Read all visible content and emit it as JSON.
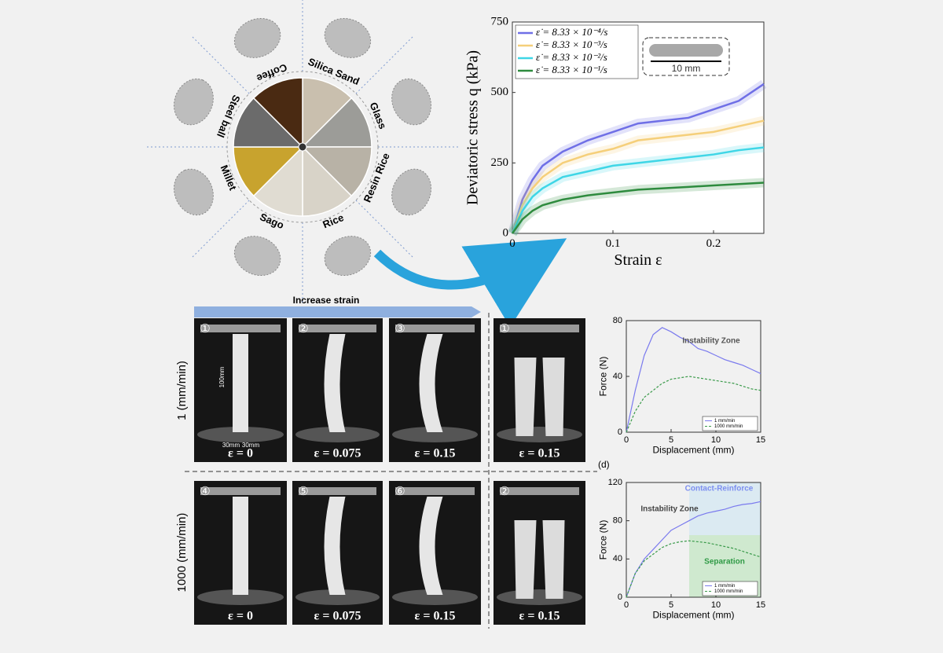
{
  "materials": [
    "Silica Sand",
    "Glass",
    "Resin Rice",
    "Rice",
    "Sago",
    "Millet",
    "Steel ball",
    "Coffee"
  ],
  "photos": {
    "increase_strain": "Increase strain",
    "rows": [
      "1 (mm/min)",
      "1000 (mm/min)"
    ],
    "dimensions": [
      "100mm",
      "30mm",
      "30mm"
    ],
    "panel_label": "(d)",
    "panels": [
      {
        "number": "①",
        "strain": "ε = 0"
      },
      {
        "number": "②",
        "strain": "ε = 0.075"
      },
      {
        "number": "③",
        "strain": "ε = 0.15"
      },
      {
        "number": "①",
        "strain": "ε = 0.15"
      },
      {
        "number": "④",
        "strain": "ε = 0"
      },
      {
        "number": "⑤",
        "strain": "ε = 0.075"
      },
      {
        "number": "⑥",
        "strain": "ε = 0.15"
      },
      {
        "number": "②",
        "strain": "ε = 0.15"
      }
    ]
  },
  "chart_data": [
    {
      "type": "line",
      "xlabel": "Strain ε",
      "ylabel": "Deviatoric stress q (kPa)",
      "x": [
        0,
        0.01,
        0.02,
        0.03,
        0.05,
        0.075,
        0.1,
        0.125,
        0.15,
        0.175,
        0.2,
        0.225,
        0.25
      ],
      "xlim": [
        0,
        0.25
      ],
      "xticks": [
        0,
        0.1,
        0.2
      ],
      "ylim": [
        0,
        750
      ],
      "yticks": [
        0,
        250,
        500,
        750
      ],
      "grid": false,
      "legend": "upper left",
      "annotations": [
        "10 mm"
      ],
      "series": [
        {
          "name": "ε̇ = 8.33 × 10⁻⁴/s",
          "color": "#6f6fe6",
          "linestyle": "solid",
          "values": [
            0,
            120,
            190,
            240,
            290,
            330,
            360,
            390,
            400,
            410,
            440,
            470,
            530
          ]
        },
        {
          "name": "ε̇ = 8.33 × 10⁻³/s",
          "color": "#f5cf7a",
          "linestyle": "solid",
          "values": [
            0,
            100,
            160,
            200,
            250,
            280,
            300,
            330,
            340,
            350,
            360,
            380,
            400
          ]
        },
        {
          "name": "ε̇ = 8.33 × 10⁻²/s",
          "color": "#3fd6e6",
          "linestyle": "solid",
          "values": [
            0,
            80,
            130,
            160,
            200,
            220,
            240,
            250,
            260,
            270,
            280,
            295,
            305
          ]
        },
        {
          "name": "ε̇ = 8.33 × 10⁻¹/s",
          "color": "#2e8b3e",
          "linestyle": "solid",
          "values": [
            0,
            50,
            80,
            100,
            120,
            135,
            145,
            155,
            160,
            165,
            170,
            175,
            180
          ]
        }
      ]
    },
    {
      "type": "line",
      "xlabel": "Displacement (mm)",
      "ylabel": "Force (N)",
      "x": [
        0,
        1,
        2,
        3,
        4,
        5,
        6,
        7,
        8,
        9,
        10,
        11,
        12,
        13,
        14,
        15
      ],
      "xlim": [
        0,
        15
      ],
      "xticks": [
        0,
        5,
        10,
        15
      ],
      "ylim": [
        0,
        80
      ],
      "yticks": [
        0,
        40,
        80
      ],
      "grid": false,
      "legend": "lower right",
      "annotations": [
        "Instability Zone"
      ],
      "series": [
        {
          "name": "1 mm/min",
          "color": "#7a7aee",
          "linestyle": "solid",
          "values": [
            0,
            30,
            55,
            70,
            75,
            72,
            68,
            65,
            60,
            58,
            55,
            52,
            50,
            48,
            45,
            42
          ]
        },
        {
          "name": "1000 mm/min",
          "color": "#3a9a4a",
          "linestyle": "dashed",
          "values": [
            0,
            15,
            25,
            30,
            35,
            38,
            39,
            40,
            39,
            38,
            37,
            36,
            35,
            33,
            31,
            30
          ]
        }
      ]
    },
    {
      "type": "line",
      "xlabel": "Displacement (mm)",
      "ylabel": "Force (N)",
      "x": [
        0,
        1,
        2,
        3,
        4,
        5,
        6,
        7,
        8,
        9,
        10,
        11,
        12,
        13,
        14,
        15
      ],
      "xlim": [
        0,
        15
      ],
      "xticks": [
        0,
        5,
        10,
        15
      ],
      "ylim": [
        0,
        120
      ],
      "yticks": [
        0,
        40,
        80,
        120
      ],
      "grid": false,
      "legend": "lower right",
      "annotations": [
        "Contact-Reinforce",
        "Instability Zone",
        "Separation"
      ],
      "series": [
        {
          "name": "1 mm/min",
          "color": "#7a7aee",
          "linestyle": "solid",
          "values": [
            0,
            25,
            40,
            50,
            60,
            70,
            75,
            80,
            85,
            88,
            90,
            92,
            95,
            97,
            98,
            100
          ]
        },
        {
          "name": "1000 mm/min",
          "color": "#3a9a4a",
          "linestyle": "dashed",
          "values": [
            0,
            25,
            38,
            45,
            52,
            56,
            58,
            59,
            58,
            57,
            55,
            53,
            51,
            48,
            45,
            42
          ]
        }
      ]
    }
  ]
}
